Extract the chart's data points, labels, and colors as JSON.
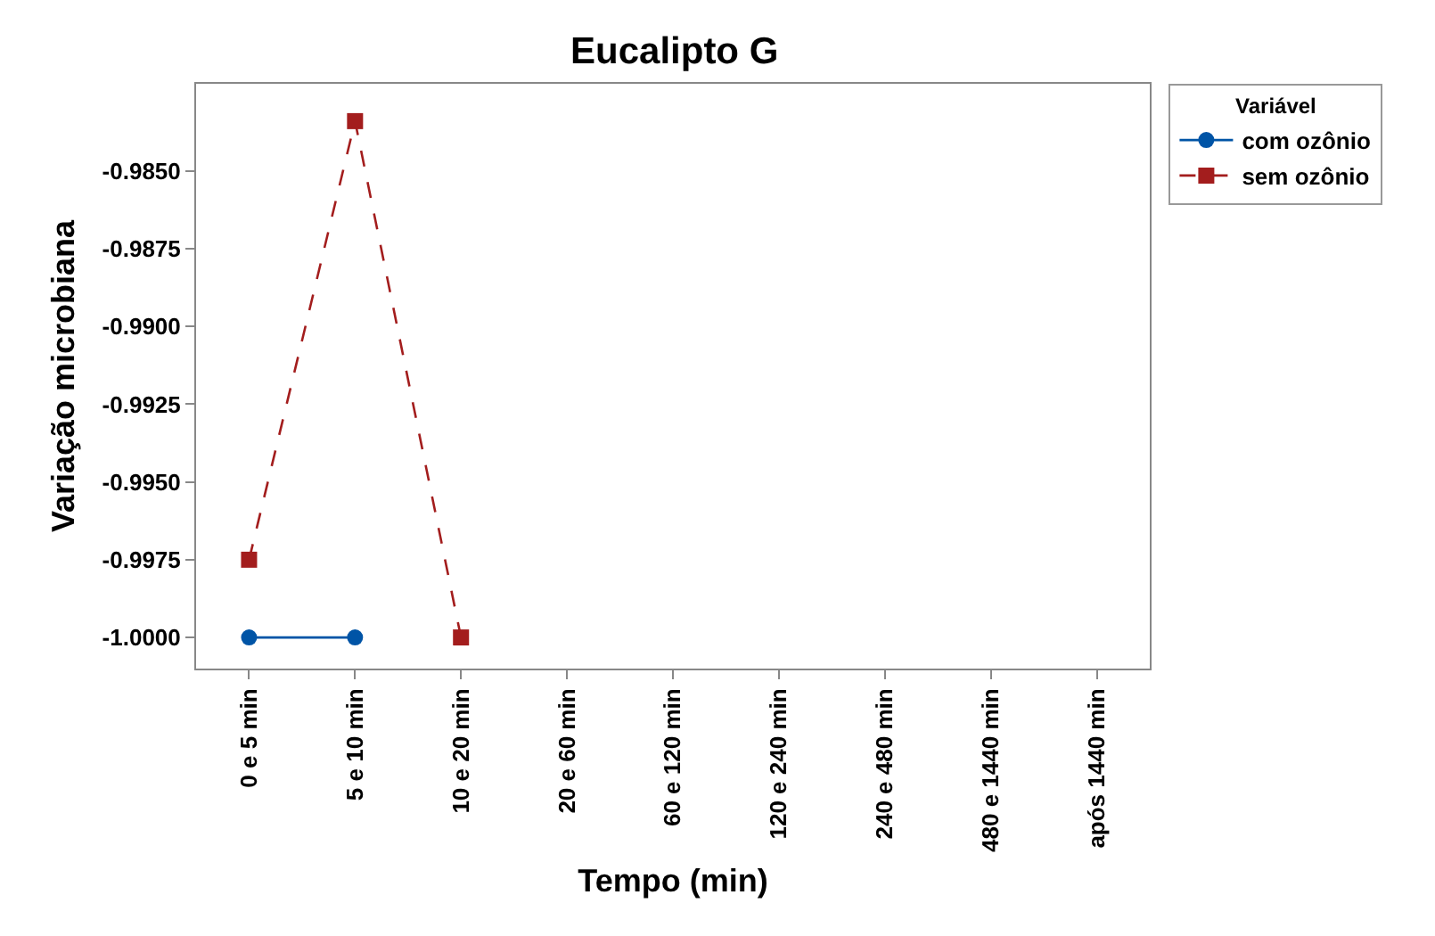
{
  "chart_data": {
    "type": "line",
    "title": "Eucalipto G",
    "xlabel": "Tempo (min)",
    "ylabel": "Variação microbiana",
    "legend_title": "Variável",
    "categories": [
      "0 e 5 min",
      "5 e 10 min",
      "10 e 20 min",
      "20 e 60 min",
      "60 e 120 min",
      "120 e 240 min",
      "240 e 480 min",
      "480 e 1440 min",
      "após 1440 min"
    ],
    "series": [
      {
        "name": "com ozônio",
        "color": "#0054a6",
        "marker": "circle",
        "line_style": "solid",
        "values": [
          -1.0,
          -1.0,
          null,
          null,
          null,
          null,
          null,
          null,
          null
        ]
      },
      {
        "name": "sem ozônio",
        "color": "#a31d1d",
        "marker": "square",
        "line_style": "dashed",
        "values": [
          -0.9975,
          -0.9834,
          -1.0,
          null,
          null,
          null,
          null,
          null,
          null
        ]
      }
    ],
    "ylim": [
      -1.001,
      -0.9822
    ],
    "yticks": [
      {
        "value": -1.0,
        "label": "-1.0000"
      },
      -0.9975,
      {
        "value": -0.995,
        "label": "-0.9950"
      },
      -0.9925,
      {
        "value": -0.99,
        "label": "-0.9900"
      },
      -0.9875,
      {
        "value": -0.985,
        "label": "-0.9850"
      }
    ],
    "grid": false,
    "legend": "top right"
  }
}
